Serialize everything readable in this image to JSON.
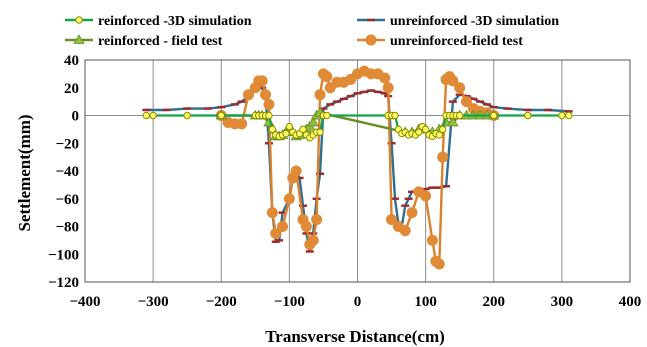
{
  "chart_data": {
    "type": "line",
    "xlabel": "Transverse Distance(cm)",
    "ylabel": "Settlement(mm)",
    "xlim": [
      -400,
      400
    ],
    "ylim": [
      -120,
      40
    ],
    "xticks": [
      -400,
      -300,
      -200,
      -100,
      0,
      100,
      200,
      300,
      400
    ],
    "yticks": [
      40,
      20,
      0,
      -20,
      -40,
      -60,
      -80,
      -100,
      -120
    ],
    "vertical_grid": true,
    "legend_position": "top",
    "series": [
      {
        "name": "reinforced -3D simulation",
        "color": "#16a34a",
        "marker": "circle",
        "marker_fill": "#ffff66",
        "marker_stroke": "#8a8a00",
        "x": [
          -310,
          -300,
          -250,
          -200,
          -150,
          -145,
          -140,
          -135,
          -130,
          -125,
          -120,
          -115,
          -110,
          -105,
          -100,
          -95,
          -90,
          -85,
          -80,
          -75,
          -70,
          -65,
          -60,
          -55,
          -50,
          -45,
          45,
          50,
          55,
          60,
          65,
          70,
          75,
          80,
          85,
          90,
          95,
          100,
          105,
          110,
          115,
          120,
          125,
          130,
          135,
          140,
          145,
          150,
          200,
          250,
          300,
          310
        ],
        "y": [
          0,
          0,
          0,
          0,
          0,
          0,
          0,
          0,
          0,
          -10,
          -14,
          -15,
          -14,
          -13,
          -8,
          -12,
          -14,
          -13,
          -10,
          -14,
          -16,
          -14,
          -12,
          -12,
          0,
          0,
          0,
          0,
          0,
          -10,
          -13,
          -12,
          -14,
          -13,
          -14,
          -12,
          -8,
          -10,
          -14,
          -15,
          -13,
          -14,
          -10,
          0,
          0,
          0,
          0,
          0,
          0,
          0,
          0,
          0
        ]
      },
      {
        "name": "unreinforced -3D simulation",
        "color": "#2e6f95",
        "marker": "dash",
        "marker_color": "#a02828",
        "x": [
          -310,
          -280,
          -250,
          -220,
          -200,
          -180,
          -170,
          -160,
          -150,
          -140,
          -135,
          -130,
          -125,
          -120,
          -115,
          -110,
          -100,
          -95,
          -90,
          -85,
          -80,
          -75,
          -70,
          -65,
          -60,
          -55,
          -50,
          -40,
          -30,
          -20,
          -10,
          0,
          10,
          20,
          30,
          40,
          45,
          50,
          55,
          60,
          65,
          70,
          75,
          80,
          90,
          100,
          110,
          120,
          130,
          140,
          150,
          160,
          170,
          180,
          190,
          200,
          220,
          250,
          280,
          310
        ],
        "y": [
          4,
          4,
          5,
          5,
          6,
          8,
          10,
          14,
          18,
          20,
          14,
          -20,
          -70,
          -91,
          -90,
          -70,
          -60,
          -45,
          -40,
          -45,
          -65,
          -85,
          -98,
          -85,
          -60,
          -42,
          5,
          8,
          10,
          12,
          14,
          16,
          17,
          18,
          17,
          16,
          14,
          -20,
          -60,
          -78,
          -80,
          -65,
          -60,
          -55,
          -54,
          -53,
          -52,
          -52,
          -51,
          10,
          15,
          14,
          12,
          10,
          8,
          6,
          5,
          4,
          4,
          3
        ]
      },
      {
        "name": "reinforced - field test",
        "color": "#6b8e23",
        "marker": "triangle",
        "marker_fill": "#8fbf3f",
        "x": [
          -200,
          -150,
          -145,
          -140,
          -130,
          -125,
          -120,
          -115,
          -110,
          -105,
          -100,
          -95,
          -90,
          -85,
          -80,
          -75,
          -70,
          -65,
          -60,
          -55,
          70,
          80,
          90,
          100,
          110,
          120,
          130,
          140,
          150,
          160,
          170,
          180,
          190,
          200
        ],
        "y": [
          0,
          0,
          0,
          0,
          -5,
          -10,
          -15,
          -15,
          -14,
          -12,
          -10,
          -12,
          -15,
          -14,
          -12,
          -10,
          -8,
          -5,
          0,
          2,
          -12,
          -12,
          -10,
          -10,
          -12,
          -10,
          -5,
          -5,
          0,
          0,
          0,
          0,
          0,
          0
        ]
      },
      {
        "name": "unreinforced-field test",
        "color": "#d9822b",
        "marker": "circle",
        "marker_fill": "#e08a36",
        "x": [
          -200,
          -190,
          -180,
          -170,
          -160,
          -150,
          -145,
          -140,
          -135,
          -130,
          -125,
          -120,
          -110,
          -100,
          -95,
          -90,
          -80,
          -75,
          -70,
          -65,
          -60,
          -55,
          -50,
          -45,
          -40,
          -30,
          -20,
          -10,
          0,
          10,
          20,
          30,
          40,
          45,
          50,
          60,
          70,
          80,
          90,
          100,
          110,
          115,
          120,
          125,
          130,
          135,
          140,
          150,
          160,
          170,
          180,
          190,
          200
        ],
        "y": [
          0,
          -5,
          -6,
          -6,
          15,
          20,
          25,
          25,
          15,
          8,
          -70,
          -85,
          -80,
          -60,
          -45,
          -40,
          -75,
          -80,
          -93,
          -90,
          -75,
          15,
          30,
          28,
          20,
          24,
          24,
          26,
          30,
          32,
          30,
          30,
          27,
          20,
          -75,
          -80,
          -83,
          -70,
          -55,
          -58,
          -90,
          -105,
          -107,
          -30,
          26,
          28,
          25,
          20,
          10,
          5,
          3,
          2,
          0
        ]
      }
    ]
  }
}
